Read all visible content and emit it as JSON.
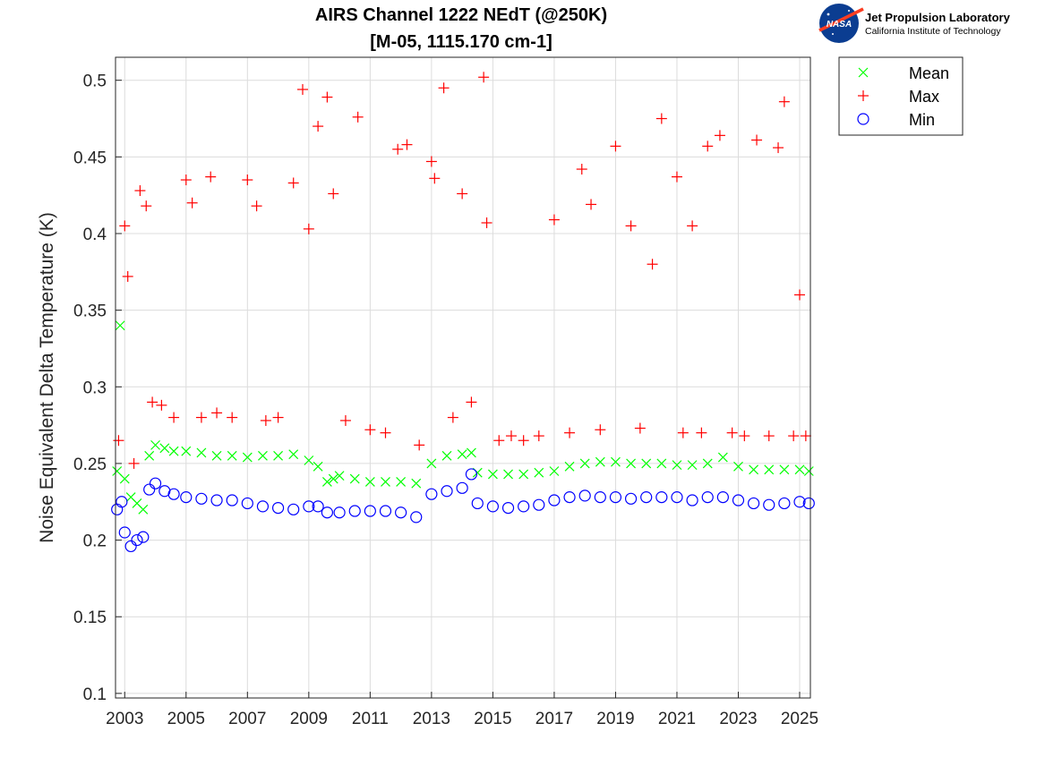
{
  "header": {
    "title_line1": "AIRS Channel 1222 NEdT (@250K)",
    "title_line2": "[M-05, 1115.170 cm-1]"
  },
  "logo": {
    "org_name": "Jet Propulsion Laboratory",
    "org_sub": "California Institute of Technology",
    "badge_text": "NASA"
  },
  "chart_data": {
    "type": "scatter",
    "title": "AIRS Channel 1222 NEdT (@250K)",
    "subtitle": "[M-05, 1115.170 cm-1]",
    "xlabel": "",
    "ylabel": "Noise Equivalent Delta Temperature (K)",
    "xlim": [
      2002.7,
      2025.35
    ],
    "ylim": [
      0.097,
      0.515
    ],
    "x_ticks": [
      "2003",
      "2005",
      "2007",
      "2009",
      "2011",
      "2013",
      "2015",
      "2017",
      "2019",
      "2021",
      "2023",
      "2025"
    ],
    "y_ticks": [
      "0.1",
      "0.15",
      "0.2",
      "0.25",
      "0.3",
      "0.35",
      "0.4",
      "0.45",
      "0.5"
    ],
    "grid": true,
    "legend_position": "outside-top-right",
    "series": [
      {
        "name": "Mean",
        "marker": "x",
        "color": "#00ff00",
        "x": [
          2002.75,
          2002.85,
          2003.0,
          2003.2,
          2003.4,
          2003.6,
          2003.8,
          2004.0,
          2004.3,
          2004.6,
          2005.0,
          2005.5,
          2006.0,
          2006.5,
          2007.0,
          2007.5,
          2008.0,
          2008.5,
          2009.0,
          2009.3,
          2009.6,
          2009.8,
          2010.0,
          2010.5,
          2011.0,
          2011.5,
          2012.0,
          2012.5,
          2013.0,
          2013.5,
          2014.0,
          2014.3,
          2014.5,
          2015.0,
          2015.5,
          2016.0,
          2016.5,
          2017.0,
          2017.5,
          2018.0,
          2018.5,
          2019.0,
          2019.5,
          2020.0,
          2020.5,
          2021.0,
          2021.5,
          2022.0,
          2022.5,
          2023.0,
          2023.5,
          2024.0,
          2024.5,
          2025.0,
          2025.3
        ],
        "values": [
          0.245,
          0.34,
          0.24,
          0.228,
          0.224,
          0.22,
          0.255,
          0.262,
          0.26,
          0.258,
          0.258,
          0.257,
          0.255,
          0.255,
          0.254,
          0.255,
          0.255,
          0.256,
          0.252,
          0.248,
          0.238,
          0.24,
          0.242,
          0.24,
          0.238,
          0.238,
          0.238,
          0.237,
          0.25,
          0.255,
          0.256,
          0.257,
          0.244,
          0.243,
          0.243,
          0.243,
          0.244,
          0.245,
          0.248,
          0.25,
          0.251,
          0.251,
          0.25,
          0.25,
          0.25,
          0.249,
          0.249,
          0.25,
          0.254,
          0.248,
          0.246,
          0.246,
          0.246,
          0.246,
          0.245
        ]
      },
      {
        "name": "Max",
        "marker": "+",
        "color": "#ff0000",
        "x": [
          2002.8,
          2003.0,
          2003.1,
          2003.3,
          2003.5,
          2003.7,
          2003.9,
          2004.2,
          2004.6,
          2005.0,
          2005.2,
          2005.5,
          2005.8,
          2006.0,
          2006.5,
          2007.0,
          2007.3,
          2007.6,
          2008.0,
          2008.5,
          2008.8,
          2009.0,
          2009.3,
          2009.6,
          2009.8,
          2010.2,
          2010.6,
          2011.0,
          2011.5,
          2011.9,
          2012.2,
          2012.6,
          2013.0,
          2013.1,
          2013.4,
          2013.7,
          2014.0,
          2014.3,
          2014.7,
          2014.8,
          2015.2,
          2015.6,
          2016.0,
          2016.5,
          2017.0,
          2017.5,
          2017.9,
          2018.2,
          2018.5,
          2019.0,
          2019.5,
          2019.8,
          2020.2,
          2020.5,
          2021.0,
          2021.2,
          2021.5,
          2021.8,
          2022.0,
          2022.4,
          2022.8,
          2023.2,
          2023.6,
          2024.0,
          2024.3,
          2024.5,
          2024.8,
          2025.0,
          2025.2
        ],
        "values": [
          0.265,
          0.405,
          0.372,
          0.25,
          0.428,
          0.418,
          0.29,
          0.288,
          0.28,
          0.435,
          0.42,
          0.28,
          0.437,
          0.283,
          0.28,
          0.435,
          0.418,
          0.278,
          0.28,
          0.433,
          0.494,
          0.403,
          0.47,
          0.489,
          0.426,
          0.278,
          0.476,
          0.272,
          0.27,
          0.455,
          0.458,
          0.262,
          0.447,
          0.436,
          0.495,
          0.28,
          0.426,
          0.29,
          0.502,
          0.407,
          0.265,
          0.268,
          0.265,
          0.268,
          0.409,
          0.27,
          0.442,
          0.419,
          0.272,
          0.457,
          0.405,
          0.273,
          0.38,
          0.475,
          0.437,
          0.27,
          0.405,
          0.27,
          0.457,
          0.464,
          0.27,
          0.268,
          0.461,
          0.268,
          0.456,
          0.486,
          0.268,
          0.36,
          0.268
        ]
      },
      {
        "name": "Min",
        "marker": "o",
        "color": "#0000ff",
        "x": [
          2002.75,
          2002.9,
          2003.0,
          2003.2,
          2003.4,
          2003.6,
          2003.8,
          2004.0,
          2004.3,
          2004.6,
          2005.0,
          2005.5,
          2006.0,
          2006.5,
          2007.0,
          2007.5,
          2008.0,
          2008.5,
          2009.0,
          2009.3,
          2009.6,
          2010.0,
          2010.5,
          2011.0,
          2011.5,
          2012.0,
          2012.5,
          2013.0,
          2013.5,
          2014.0,
          2014.3,
          2014.5,
          2015.0,
          2015.5,
          2016.0,
          2016.5,
          2017.0,
          2017.5,
          2018.0,
          2018.5,
          2019.0,
          2019.5,
          2020.0,
          2020.5,
          2021.0,
          2021.5,
          2022.0,
          2022.5,
          2023.0,
          2023.5,
          2024.0,
          2024.5,
          2025.0,
          2025.3
        ],
        "values": [
          0.22,
          0.225,
          0.205,
          0.196,
          0.2,
          0.202,
          0.233,
          0.237,
          0.232,
          0.23,
          0.228,
          0.227,
          0.226,
          0.226,
          0.224,
          0.222,
          0.221,
          0.22,
          0.222,
          0.222,
          0.218,
          0.218,
          0.219,
          0.219,
          0.219,
          0.218,
          0.215,
          0.23,
          0.232,
          0.234,
          0.243,
          0.224,
          0.222,
          0.221,
          0.222,
          0.223,
          0.226,
          0.228,
          0.229,
          0.228,
          0.228,
          0.227,
          0.228,
          0.228,
          0.228,
          0.226,
          0.228,
          0.228,
          0.226,
          0.224,
          0.223,
          0.224,
          0.225,
          0.224
        ]
      }
    ]
  }
}
